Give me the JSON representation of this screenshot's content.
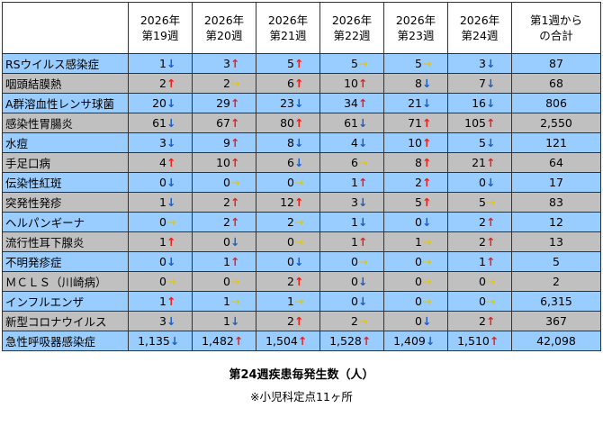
{
  "table": {
    "header": [
      [
        "2026年",
        "第19週"
      ],
      [
        "2026年",
        "第20週"
      ],
      [
        "2026年",
        "第21週"
      ],
      [
        "2026年",
        "第22週"
      ],
      [
        "2026年",
        "第23週"
      ],
      [
        "2026年",
        "第24週"
      ],
      [
        "第1週から",
        "の合計"
      ]
    ],
    "rows": [
      {
        "label": "RSウイルス感染症",
        "cells": [
          [
            "1",
            "↓"
          ],
          [
            "3",
            "↑"
          ],
          [
            "5",
            "↑"
          ],
          [
            "5",
            "→"
          ],
          [
            "5",
            "→"
          ],
          [
            "3",
            "↓"
          ]
        ],
        "total": "87"
      },
      {
        "label": "咽頭結膜熱",
        "cells": [
          [
            "2",
            "↑"
          ],
          [
            "2",
            "→"
          ],
          [
            "6",
            "↑"
          ],
          [
            "10",
            "↑"
          ],
          [
            "8",
            "↓"
          ],
          [
            "7",
            "↓"
          ]
        ],
        "total": "68"
      },
      {
        "label": "A群溶血性レンサ球菌",
        "cells": [
          [
            "20",
            "↓"
          ],
          [
            "29",
            "↑"
          ],
          [
            "23",
            "↓"
          ],
          [
            "34",
            "↑"
          ],
          [
            "21",
            "↓"
          ],
          [
            "16",
            "↓"
          ]
        ],
        "total": "806"
      },
      {
        "label": "感染性胃腸炎",
        "cells": [
          [
            "61",
            "↓"
          ],
          [
            "67",
            "↑"
          ],
          [
            "80",
            "↑"
          ],
          [
            "61",
            "↓"
          ],
          [
            "71",
            "↑"
          ],
          [
            "105",
            "↑"
          ]
        ],
        "total": "2,550"
      },
      {
        "label": "水痘",
        "cells": [
          [
            "3",
            "↓"
          ],
          [
            "9",
            "↑"
          ],
          [
            "8",
            "↓"
          ],
          [
            "4",
            "↓"
          ],
          [
            "10",
            "↑"
          ],
          [
            "5",
            "↓"
          ]
        ],
        "total": "121"
      },
      {
        "label": "手足口病",
        "cells": [
          [
            "4",
            "↑"
          ],
          [
            "10",
            "↑"
          ],
          [
            "6",
            "↓"
          ],
          [
            "6",
            "→"
          ],
          [
            "8",
            "↑"
          ],
          [
            "21",
            "↑"
          ]
        ],
        "total": "64"
      },
      {
        "label": "伝染性紅斑",
        "cells": [
          [
            "0",
            "↓"
          ],
          [
            "0",
            "→"
          ],
          [
            "0",
            "→"
          ],
          [
            "1",
            "↑"
          ],
          [
            "2",
            "↑"
          ],
          [
            "0",
            "↓"
          ]
        ],
        "total": "17"
      },
      {
        "label": "突発性発疹",
        "cells": [
          [
            "1",
            "↓"
          ],
          [
            "2",
            "↑"
          ],
          [
            "12",
            "↑"
          ],
          [
            "3",
            "↓"
          ],
          [
            "5",
            "↑"
          ],
          [
            "5",
            "→"
          ]
        ],
        "total": "83"
      },
      {
        "label": "ヘルパンギーナ",
        "cells": [
          [
            "0",
            "→"
          ],
          [
            "2",
            "↑"
          ],
          [
            "2",
            "→"
          ],
          [
            "1",
            "↓"
          ],
          [
            "0",
            "↓"
          ],
          [
            "2",
            "↑"
          ]
        ],
        "total": "12"
      },
      {
        "label": "流行性耳下腺炎",
        "cells": [
          [
            "1",
            "↑"
          ],
          [
            "0",
            "↓"
          ],
          [
            "0",
            "→"
          ],
          [
            "1",
            "↑"
          ],
          [
            "1",
            "→"
          ],
          [
            "2",
            "↑"
          ]
        ],
        "total": "13"
      },
      {
        "label": "不明発疹症",
        "cells": [
          [
            "0",
            "↓"
          ],
          [
            "1",
            "↑"
          ],
          [
            "0",
            "↓"
          ],
          [
            "0",
            "→"
          ],
          [
            "0",
            "→"
          ],
          [
            "1",
            "↑"
          ]
        ],
        "total": "5"
      },
      {
        "label": "ＭＣＬＳ（川崎病）",
        "cells": [
          [
            "0",
            "→"
          ],
          [
            "0",
            "→"
          ],
          [
            "2",
            "↑"
          ],
          [
            "0",
            "↓"
          ],
          [
            "0",
            "→"
          ],
          [
            "0",
            "→"
          ]
        ],
        "total": "2"
      },
      {
        "label": "インフルエンザ",
        "cells": [
          [
            "1",
            "↑"
          ],
          [
            "1",
            "→"
          ],
          [
            "1",
            "→"
          ],
          [
            "0",
            "↓"
          ],
          [
            "0",
            "→"
          ],
          [
            "0",
            "→"
          ]
        ],
        "total": "6,315"
      },
      {
        "label": "新型コロナウイルス",
        "cells": [
          [
            "3",
            "↓"
          ],
          [
            "1",
            "↓"
          ],
          [
            "2",
            "↑"
          ],
          [
            "2",
            "→"
          ],
          [
            "0",
            "↓"
          ],
          [
            "2",
            "↑"
          ]
        ],
        "total": "367"
      },
      {
        "label": "急性呼吸器感染症",
        "cells": [
          [
            "1,135",
            "↓"
          ],
          [
            "1,482",
            "↑"
          ],
          [
            "1,504",
            "↑"
          ],
          [
            "1,528",
            "↑"
          ],
          [
            "1,409",
            "↓"
          ],
          [
            "1,510",
            "↑"
          ]
        ],
        "total": "42,098"
      }
    ],
    "row_colors": [
      "#99ccff",
      "#c0c0c0"
    ],
    "trend_colors": {
      "↑": "#e8201c",
      "↓": "#1f5fbf",
      "→": "#e6c800"
    }
  },
  "footer": {
    "title": "第24週疾患毎発生数（人）",
    "note": "※小児科定点11ヶ所"
  }
}
